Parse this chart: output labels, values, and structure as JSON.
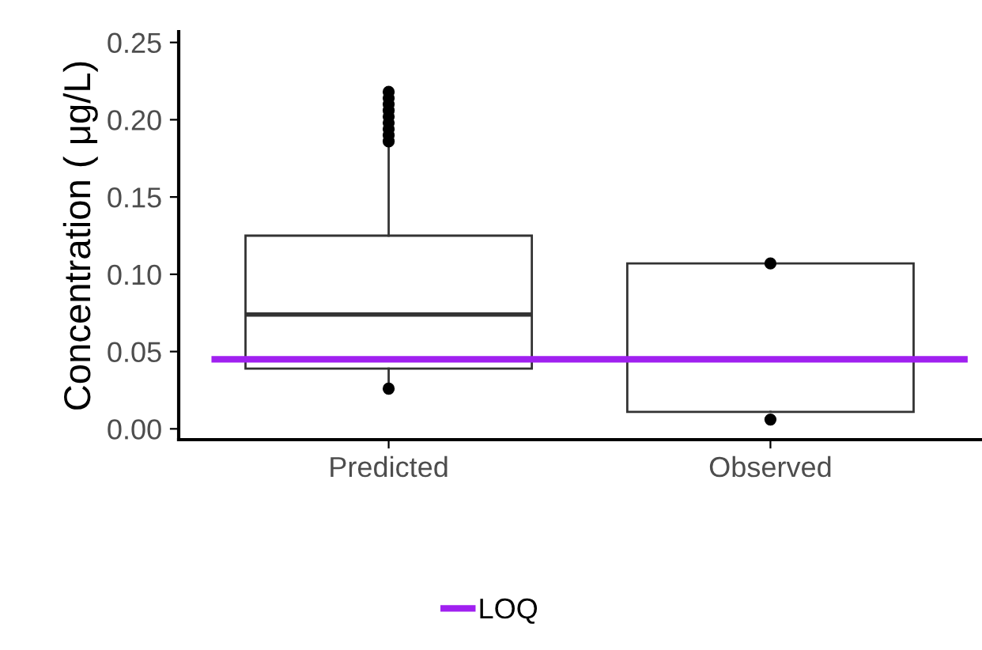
{
  "chart_data": {
    "type": "box",
    "ylabel": "Concentration ( μg/L)",
    "categories": [
      "Predicted",
      "Observed"
    ],
    "boxes": [
      {
        "low": 0.029,
        "q1": 0.039,
        "median": 0.074,
        "q3": 0.125,
        "high": 0.184,
        "outliers": [
          0.026,
          0.186,
          0.19,
          0.194,
          0.198,
          0.202,
          0.206,
          0.21,
          0.214,
          0.218
        ]
      },
      {
        "low": 0.011,
        "q1": 0.011,
        "median": null,
        "q3": 0.107,
        "high": 0.107,
        "outliers": [
          0.107,
          0.006
        ]
      }
    ],
    "ylim": [
      -0.007,
      0.257
    ],
    "yticks": [
      {
        "value": 0,
        "label": "0.00"
      },
      0.05,
      {
        "value": 0.1,
        "label": "0.10"
      },
      0.15,
      {
        "value": 0.2,
        "label": "0.20"
      },
      0.25
    ],
    "ref_lines": [
      {
        "axis": "y",
        "value": 0.045,
        "label": "LOQ",
        "color": "#a020f0"
      }
    ],
    "grid": false,
    "legend": "bottom"
  }
}
